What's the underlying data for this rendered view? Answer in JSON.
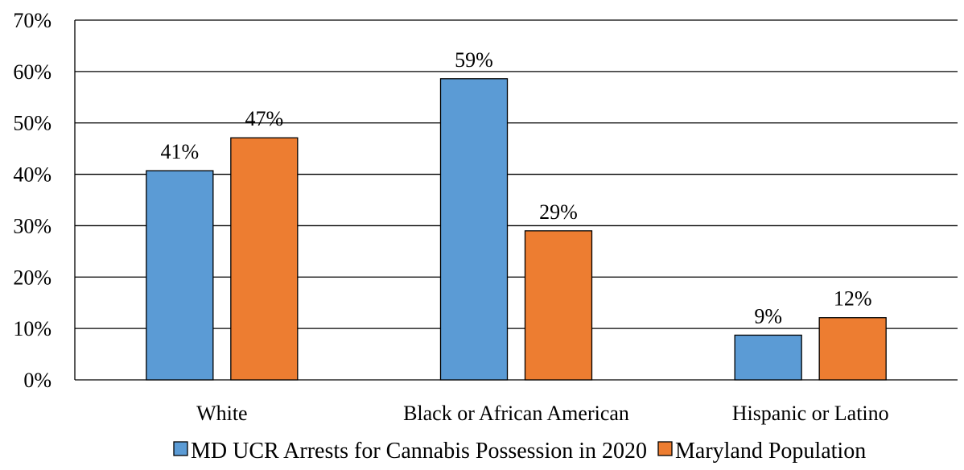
{
  "chart_data": {
    "type": "bar",
    "title": "",
    "xlabel": "",
    "ylabel": "",
    "categories": [
      "White",
      "Black or African American",
      "Hispanic or Latino"
    ],
    "series": [
      {
        "name": "MD UCR Arrests for Cannabis Possession in 2020",
        "color": "#5B9BD5",
        "values": [
          40.7,
          58.6,
          8.7
        ],
        "labels": [
          "41%",
          "59%",
          "9%"
        ]
      },
      {
        "name": "Maryland Population",
        "color": "#ED7D31",
        "values": [
          47.1,
          29.0,
          12.1
        ],
        "labels": [
          "47%",
          "29%",
          "12%"
        ]
      }
    ],
    "ylim": [
      0,
      70
    ],
    "yticks": [
      0,
      10,
      20,
      30,
      40,
      50,
      60,
      70
    ],
    "ytick_labels": [
      "0%",
      "10%",
      "20%",
      "30%",
      "40%",
      "50%",
      "60%",
      "70%"
    ],
    "grid": true,
    "legend_position": "bottom"
  }
}
